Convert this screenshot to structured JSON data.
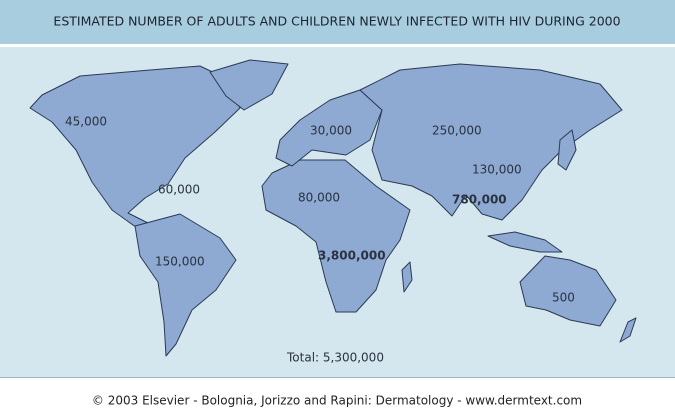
{
  "title": "ESTIMATED NUMBER OF ADULTS AND CHILDREN NEWLY INFECTED WITH HIV DURING 2000",
  "regions": [
    {
      "label": "45,000",
      "bold": false
    },
    {
      "label": "60,000",
      "bold": false
    },
    {
      "label": "150,000",
      "bold": false
    },
    {
      "label": "30,000",
      "bold": false
    },
    {
      "label": "80,000",
      "bold": false
    },
    {
      "label": "3,800,000",
      "bold": true
    },
    {
      "label": "250,000",
      "bold": false
    },
    {
      "label": "130,000",
      "bold": false
    },
    {
      "label": "780,000",
      "bold": true
    },
    {
      "label": "500",
      "bold": false
    }
  ],
  "total": "Total: 5,300,000",
  "footer": "© 2003 Elsevier - Bolognia, Jorizzo and Rapini: Dermatology - www.dermtext.com"
}
